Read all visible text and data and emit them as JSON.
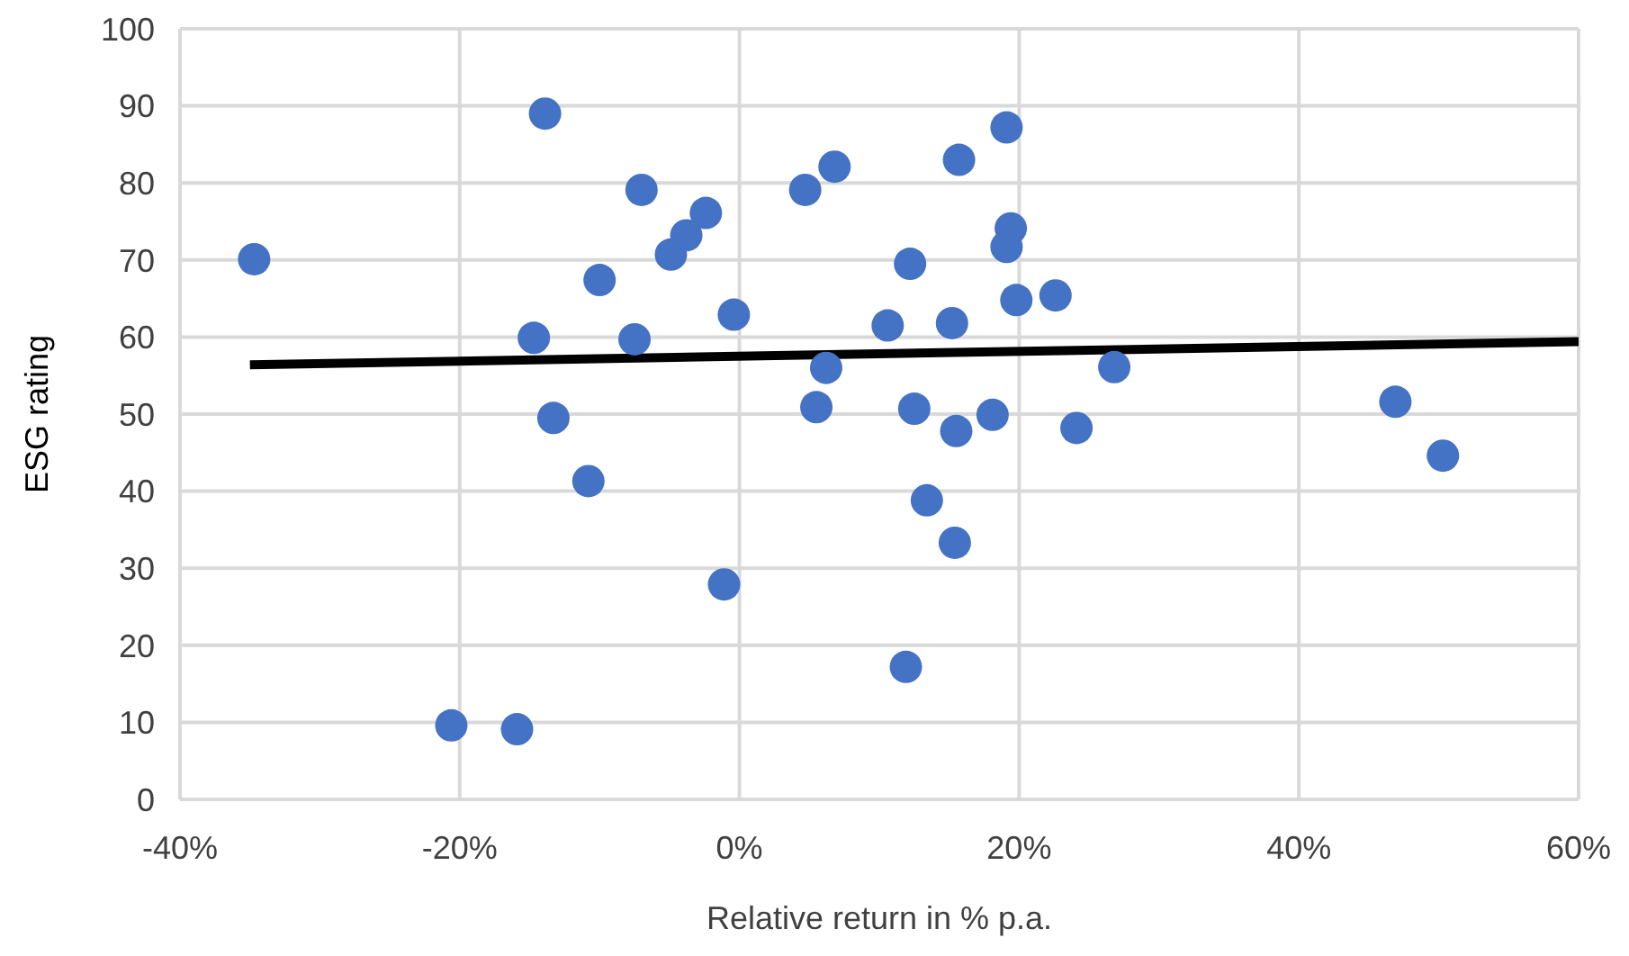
{
  "chart_data": {
    "type": "scatter",
    "xlabel": "Relative return in % p.a.",
    "ylabel": "ESG rating",
    "xlim": [
      -40,
      60
    ],
    "xticks": [
      {
        "value": -40,
        "label": "-40%"
      },
      {
        "value": -20,
        "label": "-20%"
      },
      {
        "value": 0,
        "label": "0%"
      },
      {
        "value": 20,
        "label": "20%"
      },
      {
        "value": 40,
        "label": "40%"
      },
      {
        "value": 60,
        "label": "60%"
      }
    ],
    "ylim": [
      0,
      100
    ],
    "yticks": [
      0,
      10,
      20,
      30,
      40,
      50,
      60,
      70,
      80,
      90,
      100
    ],
    "grid": true,
    "legend": false,
    "series": [
      {
        "type": "scatter",
        "color": "#4472c4",
        "marker": "circle",
        "x": [
          -34.7,
          -13.9,
          -7.0,
          -2.4,
          -3.8,
          -4.9,
          -10.0,
          -0.4,
          -14.7,
          -7.5,
          -13.3,
          -10.8,
          -1.1,
          -20.6,
          -15.9,
          4.7,
          6.8,
          19.1,
          15.7,
          19.4,
          19.1,
          12.2,
          22.6,
          19.8,
          10.6,
          15.2,
          6.2,
          26.8,
          5.5,
          12.5,
          18.1,
          15.5,
          24.1,
          13.4,
          15.4,
          11.9,
          46.9,
          50.3
        ],
        "values": [
          70.1,
          89.0,
          79.1,
          76.1,
          73.2,
          70.7,
          67.4,
          62.9,
          59.9,
          59.7,
          49.5,
          41.3,
          27.9,
          9.6,
          9.1,
          79.1,
          82.1,
          87.2,
          83.0,
          74.1,
          71.7,
          69.5,
          65.4,
          64.8,
          61.5,
          61.8,
          56.0,
          56.1,
          50.9,
          50.7,
          49.9,
          47.8,
          48.2,
          38.8,
          33.3,
          17.2,
          51.6,
          44.6
        ]
      },
      {
        "type": "line",
        "color": "#000000",
        "marker": "none",
        "line_style": "solid",
        "x": [
          -35,
          60
        ],
        "values": [
          56.4,
          59.4
        ]
      }
    ]
  }
}
